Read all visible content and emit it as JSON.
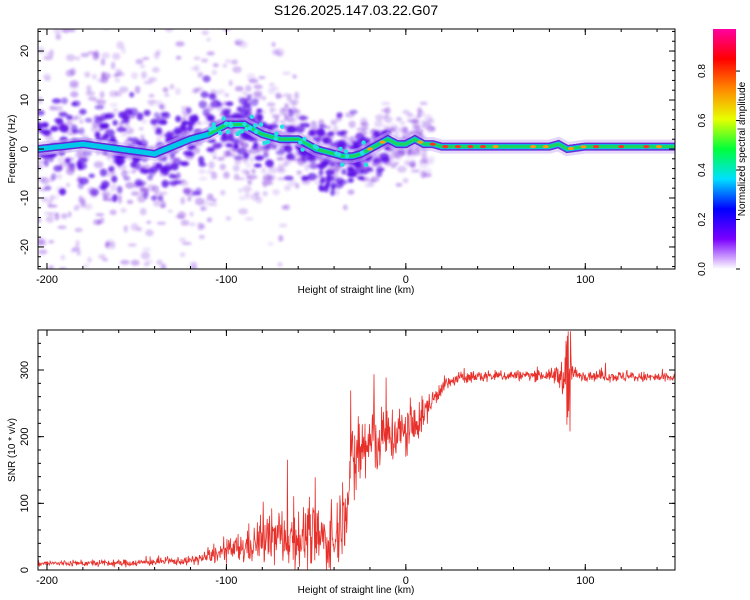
{
  "title": "S126.2025.147.03.22.G07",
  "colors": {
    "snr_line": "#e8302b",
    "band_core": "#1ad65a",
    "band_edge": "#5a1ad6",
    "scatter": "#7a2be0",
    "colorbar_stops": [
      "#ffffff",
      "#7a00ff",
      "#0000ff",
      "#00e0ff",
      "#00ff3a",
      "#e8ff00",
      "#ff8800",
      "#ff0000",
      "#ff00a0"
    ]
  },
  "chart_data": [
    {
      "type": "heatmap",
      "name": "spectrogram",
      "xlabel": "Height of straight line (km)",
      "ylabel": "Frequency (Hz)",
      "xlim": [
        -205,
        150
      ],
      "ylim": [
        -24.5,
        24.5
      ],
      "xticks": [
        -200,
        -100,
        0,
        100
      ],
      "yticks": [
        -20,
        -10,
        0,
        10,
        20
      ],
      "colorbar": {
        "label": "Normalized spectral amplitude",
        "range": [
          0,
          0.97
        ],
        "ticks": [
          "0.0",
          "0.2",
          "0.4",
          "0.6",
          "0.8"
        ],
        "tick_values": [
          0,
          0.2,
          0.4,
          0.6,
          0.8
        ]
      },
      "ridge": {
        "x": [
          -205,
          -180,
          -160,
          -140,
          -120,
          -110,
          -100,
          -90,
          -80,
          -70,
          -60,
          -50,
          -40,
          -35,
          -30,
          -25,
          -20,
          -15,
          -10,
          -5,
          0,
          5,
          10,
          15,
          20,
          40,
          60,
          80,
          85,
          90,
          100,
          120,
          150
        ],
        "freq": [
          0,
          1,
          0,
          -1,
          2,
          3,
          5,
          5,
          3,
          2,
          2,
          0,
          -1,
          -1.5,
          -1.5,
          -1,
          0,
          1,
          2,
          1,
          1,
          2,
          1,
          1,
          0.5,
          0.5,
          0.5,
          0.5,
          1,
          0,
          0.5,
          0.5,
          0.5
        ]
      }
    },
    {
      "type": "line",
      "name": "snr",
      "xlabel": "Height of straight line (km)",
      "ylabel": "SNR (10 * v/v)",
      "xlim": [
        -205,
        150
      ],
      "ylim": [
        0,
        360
      ],
      "xticks": [
        -200,
        -100,
        0,
        100
      ],
      "yticks": [
        0,
        100,
        200,
        300
      ],
      "series": [
        {
          "x": [
            -205,
            -180,
            -160,
            -140,
            -120,
            -110,
            -100,
            -90,
            -80,
            -70,
            -60,
            -50,
            -40,
            -35,
            -30,
            -25,
            -20,
            -15,
            -10,
            -5,
            0,
            5,
            10,
            20,
            30,
            40,
            60,
            80,
            88,
            90,
            92,
            95,
            100,
            120,
            150
          ],
          "mean": [
            10,
            10,
            10,
            12,
            14,
            20,
            28,
            34,
            45,
            50,
            50,
            48,
            40,
            90,
            150,
            180,
            190,
            195,
            200,
            205,
            205,
            215,
            235,
            275,
            288,
            290,
            292,
            292,
            292,
            280,
            300,
            292,
            292,
            290,
            288
          ],
          "noise": [
            5,
            5,
            6,
            6,
            7,
            12,
            18,
            30,
            40,
            48,
            55,
            55,
            50,
            70,
            80,
            80,
            70,
            55,
            50,
            50,
            45,
            40,
            25,
            14,
            10,
            10,
            9,
            9,
            30,
            70,
            40,
            10,
            9,
            9,
            9
          ]
        }
      ]
    }
  ]
}
